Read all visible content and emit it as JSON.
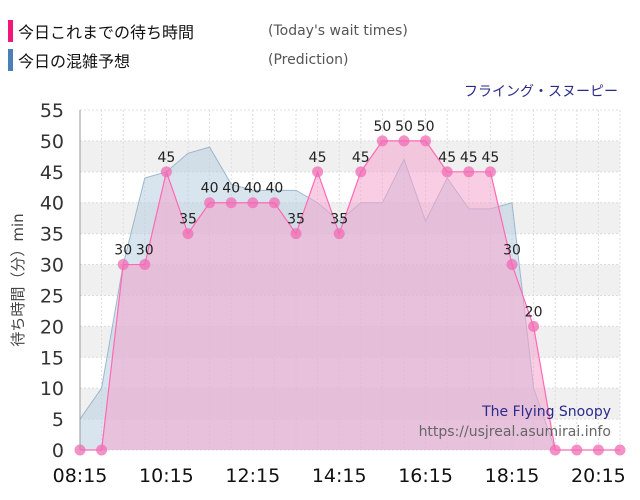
{
  "legend": {
    "today_jp": "今日これまでの待ち時間",
    "today_en": "(Today's wait times)",
    "pred_jp": "今日の混雑予想",
    "pred_en": "(Prediction)"
  },
  "attraction_jp": "フライング・スヌーピー",
  "watermark": {
    "name": "The Flying Snoopy",
    "url": "https://usjreal.asumirai.info"
  },
  "colors": {
    "actual_line": "#ff69b4",
    "actual_fill": "#f4a6cf",
    "actual_marker": "#f06cb4",
    "prediction_fill": "#b9cfe0",
    "prediction_line": "#9db6cc",
    "today_swatch": "#f0197a",
    "prediction_swatch": "#4a7fb8",
    "attraction_text": "#2a2a8a"
  },
  "chart_data": {
    "type": "area",
    "xlabel": "",
    "ylabel": "待ち時間（分）min",
    "ylim": [
      0,
      55
    ],
    "yticks": [
      0,
      5,
      10,
      15,
      20,
      25,
      30,
      35,
      40,
      45,
      50,
      55
    ],
    "xticks": [
      "08:15",
      "10:15",
      "12:15",
      "14:15",
      "16:15",
      "18:15",
      "20:15"
    ],
    "grid": true,
    "series": [
      {
        "name": "今日これまでの待ち時間",
        "kind": "line-area-markers",
        "x": [
          "08:15",
          "08:45",
          "09:15",
          "09:45",
          "10:15",
          "10:45",
          "11:15",
          "11:45",
          "12:15",
          "12:45",
          "13:15",
          "13:45",
          "14:15",
          "14:45",
          "15:15",
          "15:45",
          "16:15",
          "16:45",
          "17:15",
          "17:45",
          "18:15",
          "18:45",
          "19:15",
          "19:45",
          "20:15",
          "20:45"
        ],
        "values": [
          0,
          0,
          30,
          30,
          45,
          35,
          40,
          40,
          40,
          40,
          35,
          45,
          35,
          45,
          50,
          50,
          50,
          45,
          45,
          45,
          30,
          20,
          0,
          0,
          0,
          0
        ],
        "labels": [
          null,
          null,
          "30",
          "30",
          "45",
          "35",
          "40",
          "40",
          "40",
          "40",
          "35",
          "45",
          "35",
          "45",
          "50",
          "50",
          "50",
          "45",
          "45",
          "45",
          "30",
          "20",
          null,
          null,
          null,
          null
        ]
      },
      {
        "name": "今日の混雑予想",
        "kind": "area",
        "x": [
          "08:15",
          "08:45",
          "09:15",
          "09:45",
          "10:15",
          "10:45",
          "11:15",
          "11:45",
          "12:15",
          "12:45",
          "13:15",
          "13:45",
          "14:15",
          "14:45",
          "15:15",
          "15:45",
          "16:15",
          "16:45",
          "17:15",
          "17:45",
          "18:15",
          "18:45",
          "19:15",
          "19:45",
          "20:15",
          "20:45"
        ],
        "values": [
          5,
          10,
          30,
          44,
          45,
          48,
          49,
          43,
          42,
          42,
          42,
          40,
          37,
          40,
          40,
          47,
          37,
          44,
          39,
          39,
          40,
          10,
          0,
          0,
          0,
          0
        ]
      }
    ]
  }
}
